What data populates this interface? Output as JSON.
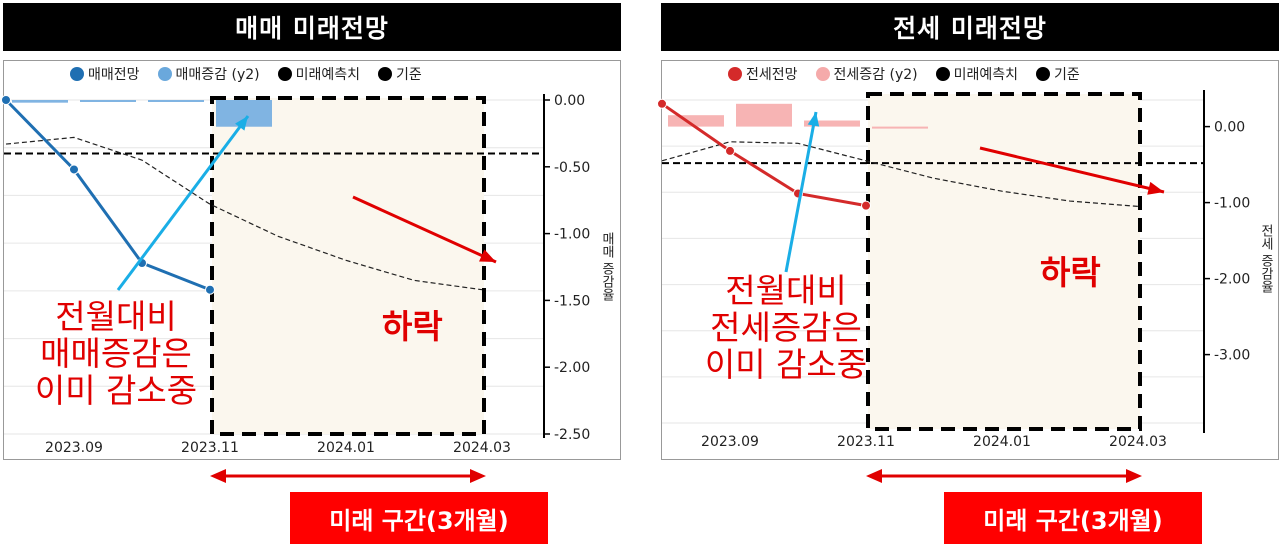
{
  "left": {
    "title": "매매 미래전망",
    "legend": [
      {
        "label": "매매전망",
        "color": "#1f6fb2"
      },
      {
        "label": "매매증감 (y2)",
        "color": "#6aa8dc"
      },
      {
        "label": "미래예측치",
        "color": "#000000"
      },
      {
        "label": "기준",
        "color": "#000000"
      }
    ],
    "ylabel": "매매 증감율",
    "annotation": [
      "전월대비",
      "매매증감은",
      "이미 감소중"
    ],
    "falling_label": "하락",
    "range_label": "미래 구간(3개월)"
  },
  "right": {
    "title": "전세 미래전망",
    "legend": [
      {
        "label": "전세전망",
        "color": "#d42a2a"
      },
      {
        "label": "전세증감 (y2)",
        "color": "#f5aaaa"
      },
      {
        "label": "미래예측치",
        "color": "#000000"
      },
      {
        "label": "기준",
        "color": "#000000"
      }
    ],
    "ylabel": "전세 증감율",
    "annotation": [
      "전월대비",
      "전세증감은",
      "이미 감소중"
    ],
    "falling_label": "하락",
    "range_label": "미래 구간(3개월)"
  },
  "chart_data": [
    {
      "type": "line",
      "title": "매매 미래전망",
      "x_ticks": [
        "2023.09",
        "2023.11",
        "2024.01",
        "2024.03"
      ],
      "y_ticks": [
        0.0,
        -0.5,
        -1.0,
        -1.5,
        -2.0,
        -2.5
      ],
      "ylim": [
        -2.5,
        0.0
      ],
      "ylabel": "매매 증감율",
      "series": [
        {
          "name": "매매전망",
          "x": [
            "2023.08",
            "2023.09",
            "2023.10",
            "2023.11"
          ],
          "values": [
            0.0,
            -0.52,
            -1.22,
            -1.42
          ]
        },
        {
          "name": "매매증감 (y2)",
          "x": [
            "2023.08",
            "2023.09",
            "2023.10",
            "2023.11"
          ],
          "values": [
            -0.02,
            -0.01,
            -0.005,
            -0.2
          ]
        },
        {
          "name": "미래예측치",
          "x": [
            "2023.08",
            "2023.09",
            "2023.10",
            "2023.11",
            "2023.12",
            "2024.01",
            "2024.02",
            "2024.03"
          ],
          "values": [
            -0.33,
            -0.28,
            -0.45,
            -0.78,
            -1.02,
            -1.2,
            -1.35,
            -1.42
          ]
        },
        {
          "name": "기준",
          "values": [
            -0.4
          ]
        }
      ],
      "legend": "top"
    },
    {
      "type": "line",
      "title": "전세 미래전망",
      "x_ticks": [
        "2023.09",
        "2023.11",
        "2024.01",
        "2024.03"
      ],
      "y_ticks": [
        0.0,
        -1.0,
        -2.0,
        -3.0
      ],
      "ylim": [
        -3.9,
        0.35
      ],
      "ylabel": "전세 증감율",
      "series": [
        {
          "name": "전세전망",
          "x": [
            "2023.08",
            "2023.09",
            "2023.10",
            "2023.11"
          ],
          "values": [
            0.3,
            -0.32,
            -0.88,
            -1.04
          ]
        },
        {
          "name": "전세증감 (y2)",
          "x": [
            "2023.08",
            "2023.09",
            "2023.10",
            "2023.11"
          ],
          "values": [
            0.15,
            0.3,
            0.08,
            -0.02
          ]
        },
        {
          "name": "미래예측치",
          "x": [
            "2023.08",
            "2023.09",
            "2023.10",
            "2023.11",
            "2023.12",
            "2024.01",
            "2024.02",
            "2024.03"
          ],
          "values": [
            -0.45,
            -0.2,
            -0.22,
            -0.45,
            -0.68,
            -0.85,
            -0.98,
            -1.05
          ]
        },
        {
          "name": "기준",
          "values": [
            -0.48
          ]
        }
      ],
      "legend": "top"
    }
  ]
}
